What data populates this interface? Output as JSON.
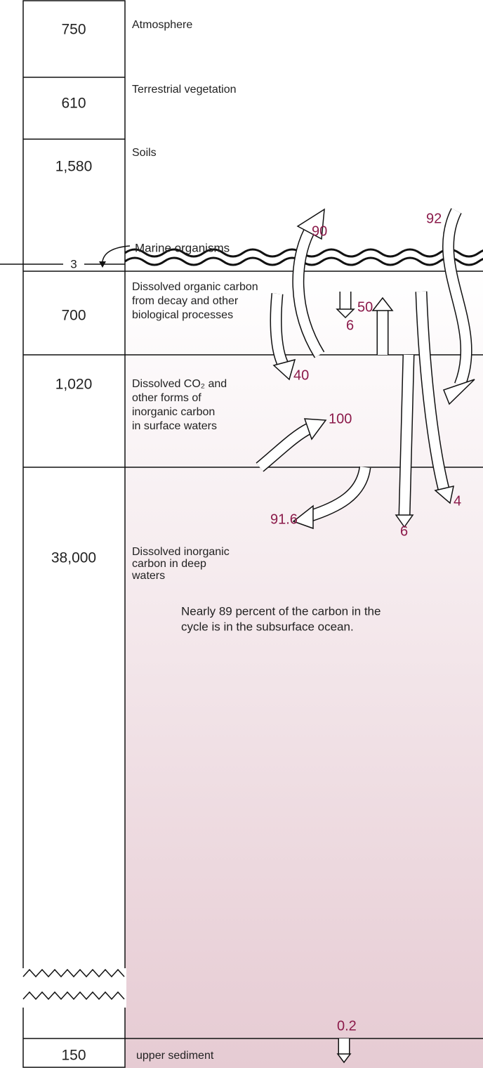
{
  "reservoirs": [
    {
      "value": "750",
      "label_lines": [
        "Atmosphere"
      ]
    },
    {
      "value": "610",
      "label_lines": [
        "Terrestrial vegetation"
      ]
    },
    {
      "value": "1,580",
      "label_lines": [
        "Soils"
      ]
    },
    {
      "value": "3",
      "label_lines": [
        "Marine organisms"
      ]
    },
    {
      "value": "700",
      "label_lines": [
        "Dissolved organic carbon",
        "from decay and other",
        "biological processes"
      ]
    },
    {
      "value": "1,020",
      "label_lines": [
        "Dissolved CO₂  and",
        "other forms of",
        "inorganic carbon",
        "in surface waters"
      ]
    },
    {
      "value": "38,000",
      "label_lines": [
        "Dissolved inorganic",
        "carbon in deep",
        "waters"
      ]
    },
    {
      "value": "150",
      "label_lines": [
        "upper sediment"
      ]
    }
  ],
  "flows": [
    "90",
    "92",
    "6",
    "50",
    "40",
    "100",
    "91.6",
    "6",
    "4",
    "0.2"
  ],
  "note_lines": [
    "Nearly 89 percent of the carbon in the",
    "cycle is in the subsurface ocean."
  ]
}
